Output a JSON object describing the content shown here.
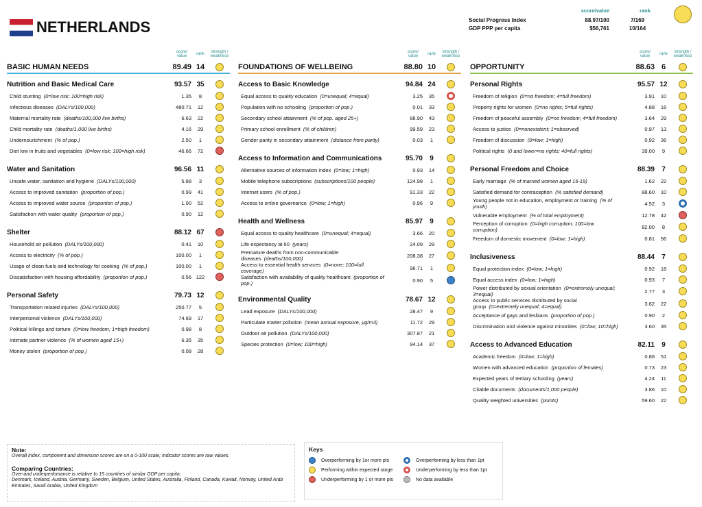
{
  "header": {
    "country": "NETHERLANDS",
    "score_label": "score/value",
    "rank_label": "rank",
    "status": "yellow",
    "rows": [
      {
        "label": "Social Progress Index",
        "value": "88.97/100",
        "rank": "7/169"
      },
      {
        "label": "GDP PPP per capita",
        "value": "$56,761",
        "rank": "10/164"
      }
    ]
  },
  "column_labels": {
    "score": "score/ value",
    "rank": "rank",
    "strength": "strength / weakness"
  },
  "dimensions": [
    {
      "title": "BASIC HUMAN NEEDS",
      "score": "89.49",
      "rank": 14,
      "status": "yellow",
      "color": "#45b0dc",
      "components": [
        {
          "name": "Nutrition and Basic Medical Care",
          "score": "93.57",
          "rank": 35,
          "status": "yellow",
          "indicators": [
            {
              "name": "Child stunting",
              "unit": "(0=low risk; 100=high risk)",
              "value": "1.35",
              "rank": 8,
              "status": "yellow"
            },
            {
              "name": "Infectious diseases",
              "unit": "(DALYs/100,000)",
              "value": "480.71",
              "rank": 12,
              "status": "yellow"
            },
            {
              "name": "Maternal mortality rate",
              "unit": "(deaths/100,000 live births)",
              "value": "6.63",
              "rank": 22,
              "status": "yellow"
            },
            {
              "name": "Child mortality rate",
              "unit": "(deaths/1,000 live births)",
              "value": "4.16",
              "rank": 29,
              "status": "yellow"
            },
            {
              "name": "Undernourishment",
              "unit": "(% of pop.)",
              "value": "2.50",
              "rank": 1,
              "status": "yellow"
            },
            {
              "name": "Diet low in fruits and vegetables",
              "unit": "(0=low risk; 100=high risk)",
              "value": "46.66",
              "rank": 72,
              "status": "red"
            }
          ]
        },
        {
          "name": "Water and Sanitation",
          "score": "96.56",
          "rank": 11,
          "status": "yellow",
          "indicators": [
            {
              "name": "Unsafe water, sanitation and hygiene",
              "unit": "(DALYs/100,000)",
              "value": "5.88",
              "rank": 3,
              "status": "yellow"
            },
            {
              "name": "Access to improved sanitation",
              "unit": "(proportion of pop.)",
              "value": "0.99",
              "rank": 41,
              "status": "yellow"
            },
            {
              "name": "Access to improved water source",
              "unit": "(proportion of pop.)",
              "value": "1.00",
              "rank": 52,
              "status": "yellow"
            },
            {
              "name": "Satisfaction with water quality",
              "unit": "(proportion of pop.)",
              "value": "0.90",
              "rank": 12,
              "status": "yellow"
            }
          ]
        },
        {
          "name": "Shelter",
          "score": "88.12",
          "rank": 67,
          "status": "red",
          "indicators": [
            {
              "name": "Household air pollution",
              "unit": "(DALYs/100,000)",
              "value": "0.41",
              "rank": 10,
              "status": "yellow"
            },
            {
              "name": "Access to electricity",
              "unit": "(% of pop.)",
              "value": "100.00",
              "rank": 1,
              "status": "yellow"
            },
            {
              "name": "Usage of clean fuels and technology for cooking",
              "unit": "(% of pop.)",
              "value": "100.00",
              "rank": 1,
              "status": "yellow"
            },
            {
              "name": "Dissatisfaction with housing affordability",
              "unit": "(proportion of pop.)",
              "value": "0.56",
              "rank": 122,
              "status": "red"
            }
          ]
        },
        {
          "name": "Personal Safety",
          "score": "79.73",
          "rank": 12,
          "status": "yellow",
          "indicators": [
            {
              "name": "Transportation related injuries",
              "unit": "(DALYs/100,000)",
              "value": "250.77",
              "rank": 5,
              "status": "yellow"
            },
            {
              "name": "Interpersonal violence",
              "unit": "(DALYs/100,000)",
              "value": "74.69",
              "rank": 17,
              "status": "yellow"
            },
            {
              "name": "Political killings and torture",
              "unit": "(0=low freedom; 1=high freedom)",
              "value": "0.98",
              "rank": 8,
              "status": "yellow"
            },
            {
              "name": "Intimate partner violence",
              "unit": "(% of women aged 15+)",
              "value": "6.35",
              "rank": 35,
              "status": "yellow"
            },
            {
              "name": "Money stolen",
              "unit": "(proportion of pop.)",
              "value": "0.08",
              "rank": 28,
              "status": "yellow"
            }
          ]
        }
      ]
    },
    {
      "title": "FOUNDATIONS OF WELLBEING",
      "score": "88.80",
      "rank": 10,
      "status": "yellow",
      "color": "#e9a04e",
      "components": [
        {
          "name": "Access to Basic Knowledge",
          "score": "94.84",
          "rank": 24,
          "status": "yellow",
          "indicators": [
            {
              "name": "Equal access to quality education",
              "unit": "(0=unequal; 4=equal)",
              "value": "3.25",
              "rank": 35,
              "status": "red-ring"
            },
            {
              "name": "Population with no schooling",
              "unit": "(proportion of pop.)",
              "value": "0.01",
              "rank": 33,
              "status": "yellow"
            },
            {
              "name": "Secondary school attainment",
              "unit": "(% of pop. aged 25+)",
              "value": "88.90",
              "rank": 43,
              "status": "yellow"
            },
            {
              "name": "Primary school enrollment",
              "unit": "(% of children)",
              "value": "99.59",
              "rank": 23,
              "status": "yellow"
            },
            {
              "name": "Gender parity in secondary attainment",
              "unit": "(distance from parity)",
              "value": "0.03",
              "rank": 1,
              "status": "yellow"
            }
          ]
        },
        {
          "name": "Access to Information and Communications",
          "score": "95.70",
          "rank": 9,
          "status": "yellow",
          "indicators": [
            {
              "name": "Alternative sources of information index",
              "unit": "(0=low; 1=high)",
              "value": "0.93",
              "rank": 14,
              "status": "yellow"
            },
            {
              "name": "Mobile telephone subscriptions",
              "unit": "(subscriptions/100 people)",
              "value": "124.98",
              "rank": 1,
              "status": "yellow"
            },
            {
              "name": "Internet users",
              "unit": "(% of pop.)",
              "value": "91.33",
              "rank": 22,
              "status": "yellow"
            },
            {
              "name": "Access to online governance",
              "unit": "(0=low; 1=high)",
              "value": "0.96",
              "rank": 9,
              "status": "yellow"
            }
          ]
        },
        {
          "name": "Health and Wellness",
          "score": "85.97",
          "rank": 9,
          "status": "yellow",
          "indicators": [
            {
              "name": "Equal access to quality healthcare",
              "unit": "(0=unequal; 4=equal)",
              "value": "3.66",
              "rank": 20,
              "status": "yellow"
            },
            {
              "name": "Life expectancy at 60",
              "unit": "(years)",
              "value": "24.09",
              "rank": 29,
              "status": "yellow"
            },
            {
              "name": "Premature deaths from non-communicable diseases",
              "unit": "(deaths/100,000)",
              "value": "208.38",
              "rank": 27,
              "status": "yellow"
            },
            {
              "name": "Access to essential health services",
              "unit": "(0=none; 100=full coverage)",
              "value": "96.71",
              "rank": 1,
              "status": "yellow"
            },
            {
              "name": "Satisfaction with availability of quality healthcare",
              "unit": "(proportion of pop.)",
              "value": "0.90",
              "rank": 5,
              "status": "blue"
            }
          ]
        },
        {
          "name": "Environmental Quality",
          "score": "78.67",
          "rank": 12,
          "status": "yellow",
          "indicators": [
            {
              "name": "Lead exposure",
              "unit": "(DALYs/100,000)",
              "value": "28.47",
              "rank": 9,
              "status": "yellow"
            },
            {
              "name": "Particulate matter pollution",
              "unit": "(mean annual exposure, µg/m3)",
              "value": "11.72",
              "rank": 29,
              "status": "yellow"
            },
            {
              "name": "Outdoor air pollution",
              "unit": "(DALYs/100,000)",
              "value": "307.87",
              "rank": 21,
              "status": "yellow"
            },
            {
              "name": "Species protection",
              "unit": "(0=low; 100=high)",
              "value": "94.14",
              "rank": 37,
              "status": "yellow"
            }
          ]
        }
      ]
    },
    {
      "title": "OPPORTUNITY",
      "score": "88.63",
      "rank": 6,
      "status": "yellow",
      "color": "#8cc152",
      "components": [
        {
          "name": "Personal Rights",
          "score": "95.57",
          "rank": 12,
          "status": "yellow",
          "indicators": [
            {
              "name": "Freedom of religion",
              "unit": "(0=no freedom; 4=full freedom)",
              "value": "3.91",
              "rank": 10,
              "status": "yellow"
            },
            {
              "name": "Property rights for women",
              "unit": "(0=no rights; 5=full rights)",
              "value": "4.88",
              "rank": 16,
              "status": "yellow"
            },
            {
              "name": "Freedom of peaceful assembly",
              "unit": "(0=no freedom; 4=full freedom)",
              "value": "3.64",
              "rank": 29,
              "status": "yellow"
            },
            {
              "name": "Access to justice",
              "unit": "(0=nonexistent; 1=observed)",
              "value": "0.97",
              "rank": 13,
              "status": "yellow"
            },
            {
              "name": "Freedom of discussion",
              "unit": "(0=low; 1=high)",
              "value": "0.92",
              "rank": 36,
              "status": "yellow"
            },
            {
              "name": "Political rights",
              "unit": "(0 and lower=no rights; 40=full rights)",
              "value": "39.00",
              "rank": 9,
              "status": "yellow"
            }
          ]
        },
        {
          "name": "Personal Freedom and Choice",
          "score": "88.39",
          "rank": 7,
          "status": "yellow",
          "indicators": [
            {
              "name": "Early marriage",
              "unit": "(% of married women aged 15-19)",
              "value": "1.62",
              "rank": 22,
              "status": "yellow"
            },
            {
              "name": "Satisfied demand for contraception",
              "unit": "(% satisfied demand)",
              "value": "88.60",
              "rank": 10,
              "status": "yellow"
            },
            {
              "name": "Young people not in education, employment or training",
              "unit": "(% of youth)",
              "value": "4.52",
              "rank": 3,
              "status": "blue-ring"
            },
            {
              "name": "Vulnerable employment",
              "unit": "(% of total employment)",
              "value": "12.78",
              "rank": 42,
              "status": "red"
            },
            {
              "name": "Perception of corruption",
              "unit": "(0=high corruption; 100=low corruption)",
              "value": "82.00",
              "rank": 8,
              "status": "yellow"
            },
            {
              "name": "Freedom of domestic movement",
              "unit": "(0=low; 1=high)",
              "value": "0.81",
              "rank": 56,
              "status": "yellow"
            }
          ]
        },
        {
          "name": "Inclusiveness",
          "score": "88.44",
          "rank": 7,
          "status": "yellow",
          "indicators": [
            {
              "name": "Equal protection index",
              "unit": "(0=low; 1=high)",
              "value": "0.92",
              "rank": 18,
              "status": "yellow"
            },
            {
              "name": "Equal access index",
              "unit": "(0=low; 1=high)",
              "value": "0.93",
              "rank": 7,
              "status": "yellow"
            },
            {
              "name": "Power distributed by sexual orientation",
              "unit": "(0=extremely unequal; 3=equal)",
              "value": "2.77",
              "rank": 3,
              "status": "yellow"
            },
            {
              "name": "Access to public services distributed by social group",
              "unit": "(0=extremely unequal; 4=equal)",
              "value": "3.62",
              "rank": 22,
              "status": "yellow"
            },
            {
              "name": "Acceptance of gays and lesbians",
              "unit": "(proportion of pop.)",
              "value": "0.90",
              "rank": 2,
              "status": "yellow"
            },
            {
              "name": "Discrimination and violence against minorities",
              "unit": "(0=low; 10=high)",
              "value": "3.60",
              "rank": 35,
              "status": "yellow"
            }
          ]
        },
        {
          "name": "Access to Advanced Education",
          "score": "82.11",
          "rank": 9,
          "status": "yellow",
          "indicators": [
            {
              "name": "Academic freedom",
              "unit": "(0=low; 1=high)",
              "value": "0.86",
              "rank": 51,
              "status": "yellow"
            },
            {
              "name": "Women with advanced education",
              "unit": "(proportion of females)",
              "value": "0.73",
              "rank": 23,
              "status": "yellow"
            },
            {
              "name": "Expected years of tertiary schooling",
              "unit": "(years)",
              "value": "4.24",
              "rank": 11,
              "status": "yellow"
            },
            {
              "name": "Citable documents",
              "unit": "(documents/1,000 people)",
              "value": "3.86",
              "rank": 10,
              "status": "yellow"
            },
            {
              "name": "Quality weighted universities",
              "unit": "(points)",
              "value": "59.60",
              "rank": 22,
              "status": "yellow"
            }
          ]
        }
      ]
    }
  ],
  "note": {
    "title": "Note:",
    "text": "Overall index, component and dimension scores are on a 0-100 scale; indicator scores are raw values.",
    "comparing_title": "Comparing Countries:",
    "comparing_text": "Over-and underperfomance is relative to 15 countries of similar GDP per capita:",
    "countries": "Denmark, Iceland, Austria, Germany, Sweden, Belgium, United States, Australia, Finland, Canada, Kuwait, Norway, United Arab Emirates, Saudi Arabia, United Kingdom"
  },
  "keys": {
    "title": "Keys",
    "items": [
      {
        "status": "blue",
        "label": "Overperforming by 1or more pts"
      },
      {
        "status": "yellow",
        "label": "Performing within expected range"
      },
      {
        "status": "red",
        "label": "Underperforming by 1 or more pts"
      },
      {
        "status": "blue-ring",
        "label": "Overperforming by less than 1pt"
      },
      {
        "status": "red-ring",
        "label": "Underperforming by less than 1pt"
      },
      {
        "status": "grey",
        "label": "No data available"
      }
    ]
  }
}
